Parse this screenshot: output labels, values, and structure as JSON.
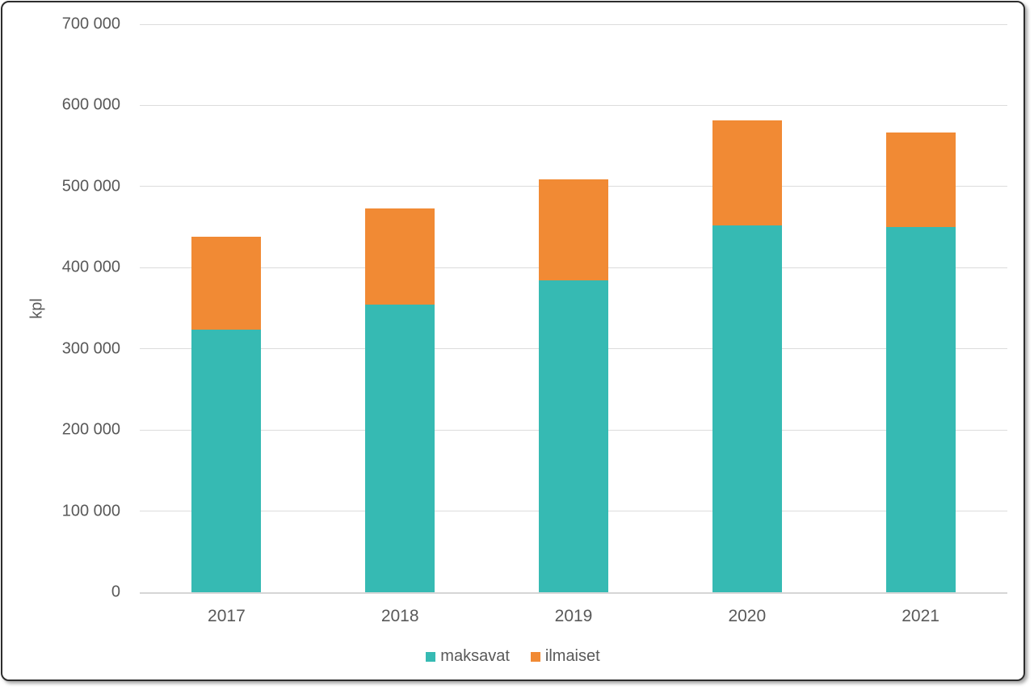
{
  "chart_data": {
    "type": "bar",
    "stacked": true,
    "title": "",
    "xlabel": "",
    "ylabel": "kpl",
    "categories": [
      "2017",
      "2018",
      "2019",
      "2020",
      "2021"
    ],
    "series": [
      {
        "name": "maksavat",
        "color": "#36bab3",
        "values": [
          324000,
          354000,
          384000,
          452000,
          450000
        ]
      },
      {
        "name": "ilmaiset",
        "color": "#f18a34",
        "values": [
          114000,
          119000,
          125000,
          130000,
          117000
        ]
      }
    ],
    "totals": [
      438000,
      473000,
      509000,
      582000,
      567000
    ],
    "ylim": [
      0,
      700000
    ],
    "ytick_step": 100000,
    "ytick_labels": [
      "0",
      "100 000",
      "200 000",
      "300 000",
      "400 000",
      "500 000",
      "600 000",
      "700 000"
    ],
    "grid": true,
    "legend_position": "bottom",
    "legend": [
      "maksavat",
      "ilmaiset"
    ]
  },
  "colors": {
    "maksavat": "#36bab3",
    "ilmaiset": "#f18a34",
    "gridline": "#dcdcdc",
    "text": "#595959",
    "frame_border": "#2d2d2d"
  }
}
